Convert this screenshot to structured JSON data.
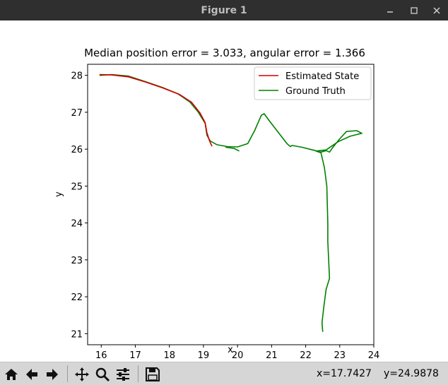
{
  "window": {
    "title": "Figure 1"
  },
  "colors": {
    "estimated": "#d40000",
    "ground_truth": "#008000",
    "titlebar": "#2f2f2f",
    "toolbar": "#d6d6d6"
  },
  "toolbar": {
    "icons": [
      "home-icon",
      "back-arrow-icon",
      "forward-arrow-icon",
      "pan-icon",
      "zoom-icon",
      "subplots-config-icon",
      "save-icon"
    ],
    "x_readout": "x=17.7427",
    "y_readout": "y=24.9878"
  },
  "chart_data": {
    "type": "line",
    "title": "Median position error = 3.033, angular error = 1.366",
    "xlabel": "x",
    "ylabel": "y",
    "xlim": [
      15.6,
      24.0
    ],
    "ylim": [
      20.7,
      28.3
    ],
    "xticks": [
      "16",
      "17",
      "18",
      "19",
      "20",
      "21",
      "22",
      "23",
      "24"
    ],
    "yticks": [
      "21",
      "22",
      "23",
      "24",
      "25",
      "26",
      "27",
      "28"
    ],
    "legend_position": "top-right",
    "grid": false,
    "series": [
      {
        "name": "Estimated State",
        "color": "#d40000",
        "points": [
          [
            15.95,
            28.02
          ],
          [
            16.3,
            28.01
          ],
          [
            16.8,
            27.96
          ],
          [
            17.3,
            27.82
          ],
          [
            17.8,
            27.66
          ],
          [
            18.3,
            27.48
          ],
          [
            18.65,
            27.27
          ],
          [
            18.9,
            26.98
          ],
          [
            19.05,
            26.72
          ],
          [
            19.1,
            26.45
          ],
          [
            19.18,
            26.22
          ],
          [
            19.25,
            26.08
          ]
        ]
      },
      {
        "name": "Ground Truth",
        "color": "#008000",
        "points": [
          [
            15.95,
            28.0
          ],
          [
            16.3,
            28.02
          ],
          [
            16.8,
            27.98
          ],
          [
            17.3,
            27.83
          ],
          [
            17.8,
            27.67
          ],
          [
            18.25,
            27.5
          ],
          [
            18.6,
            27.28
          ],
          [
            18.85,
            27.0
          ],
          [
            19.05,
            26.7
          ],
          [
            19.1,
            26.38
          ],
          [
            19.2,
            26.22
          ],
          [
            19.4,
            26.12
          ],
          [
            19.7,
            26.07
          ],
          [
            20.0,
            26.06
          ],
          [
            20.3,
            26.15
          ],
          [
            20.5,
            26.5
          ],
          [
            20.7,
            26.92
          ],
          [
            20.78,
            26.96
          ],
          [
            20.95,
            26.75
          ],
          [
            21.2,
            26.45
          ],
          [
            21.45,
            26.15
          ],
          [
            21.55,
            26.07
          ],
          [
            21.6,
            26.1
          ],
          [
            21.9,
            26.05
          ],
          [
            22.2,
            25.98
          ],
          [
            22.45,
            25.92
          ],
          [
            22.6,
            25.96
          ],
          [
            22.7,
            25.92
          ],
          [
            22.8,
            26.05
          ],
          [
            23.0,
            26.28
          ],
          [
            23.2,
            26.48
          ],
          [
            23.5,
            26.5
          ],
          [
            23.65,
            26.43
          ],
          [
            23.3,
            26.35
          ],
          [
            22.95,
            26.2
          ],
          [
            22.6,
            25.98
          ],
          [
            22.3,
            25.95
          ],
          [
            22.45,
            25.9
          ],
          [
            22.55,
            25.5
          ],
          [
            22.62,
            25.0
          ],
          [
            22.65,
            24.0
          ],
          [
            22.65,
            23.5
          ],
          [
            22.7,
            22.5
          ],
          [
            22.6,
            22.2
          ],
          [
            22.53,
            21.7
          ],
          [
            22.48,
            21.3
          ],
          [
            22.5,
            21.05
          ]
        ]
      },
      {
        "name": "",
        "color": "#008000",
        "points": [
          [
            19.65,
            26.05
          ],
          [
            19.9,
            26.02
          ],
          [
            20.05,
            25.95
          ]
        ]
      }
    ]
  }
}
